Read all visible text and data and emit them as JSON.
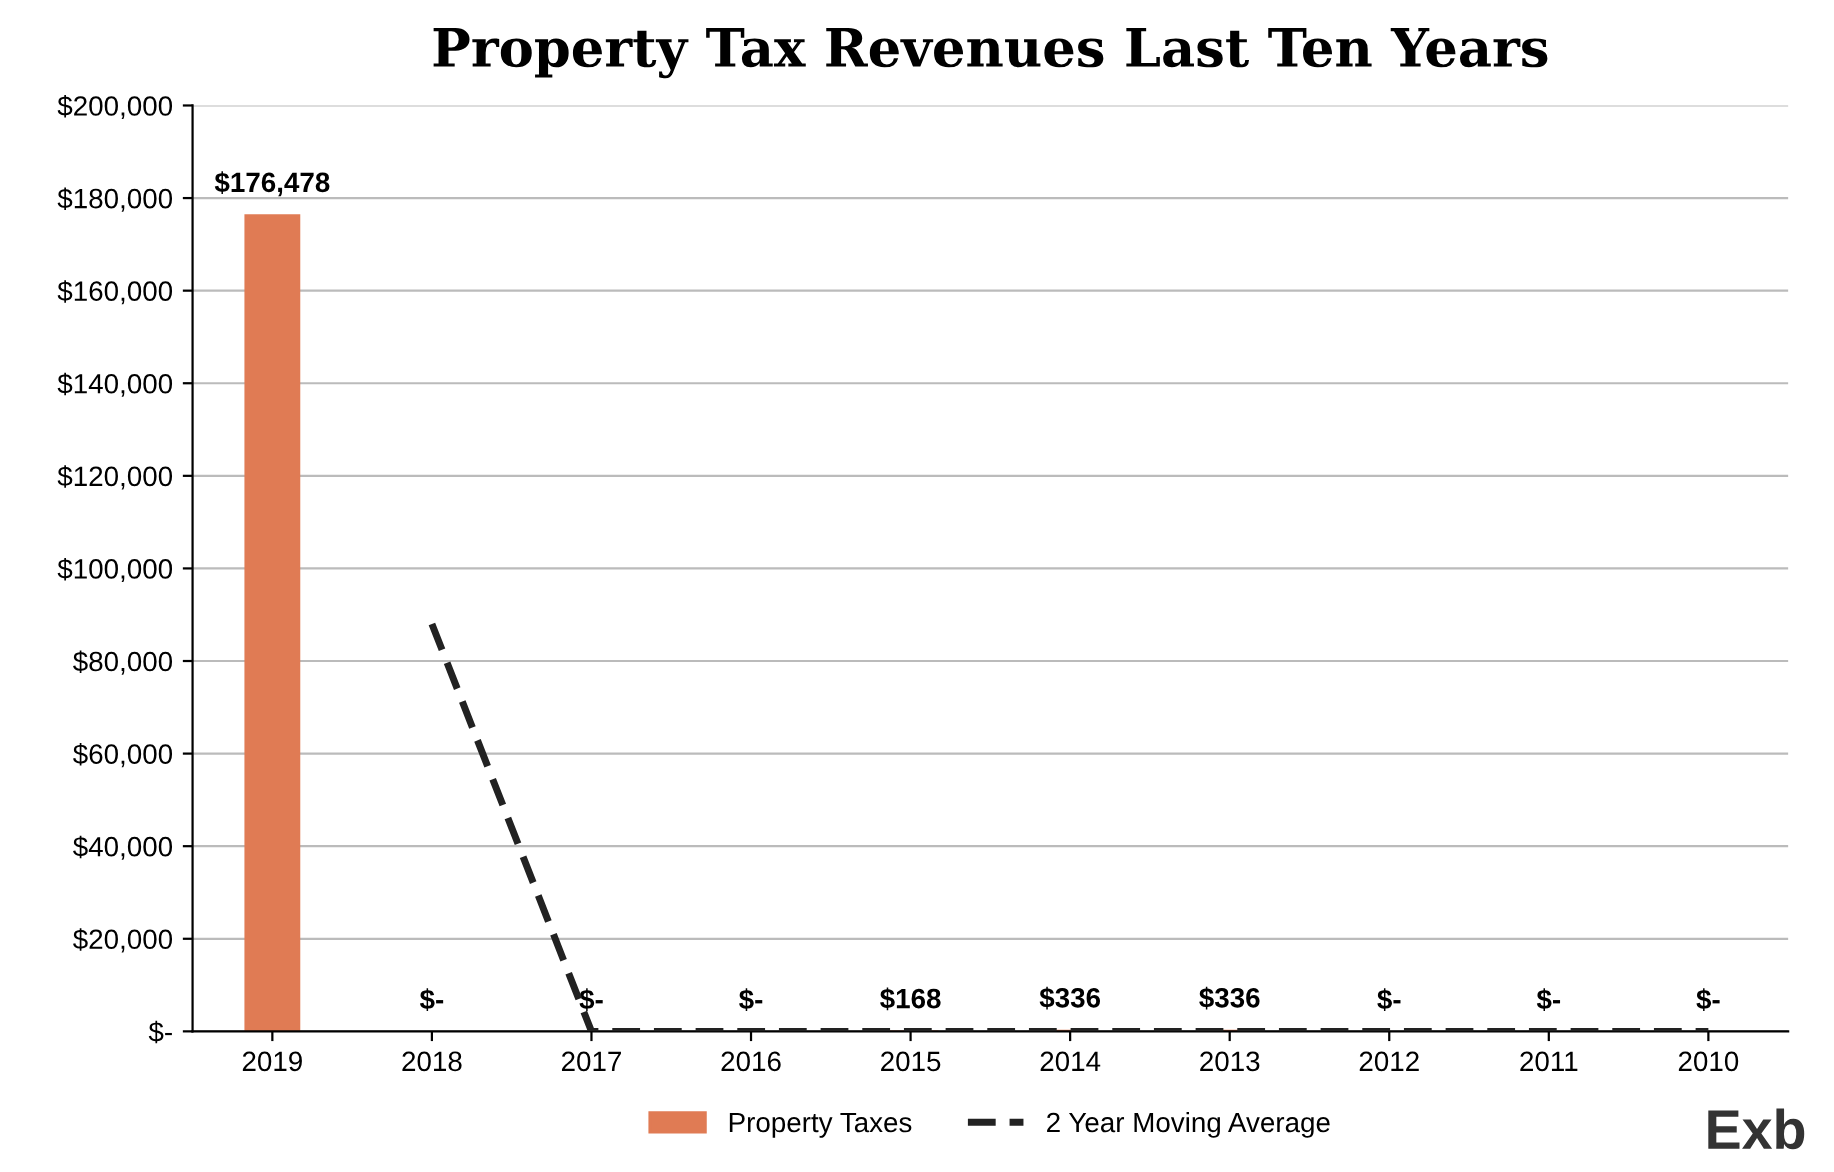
{
  "chart_data": {
    "type": "bar",
    "title": "Property Tax Revenues Last Ten Years",
    "categories": [
      "2019",
      "2018",
      "2017",
      "2016",
      "2015",
      "2014",
      "2013",
      "2012",
      "2011",
      "2010"
    ],
    "series": [
      {
        "name": "Property Taxes",
        "color": "#e07b54",
        "values": [
          176478,
          0,
          0,
          0,
          168,
          336,
          336,
          0,
          0,
          0
        ],
        "value_labels": [
          "$176,478",
          "$-",
          "$-",
          "$-",
          "$168",
          "$336",
          "$336",
          "$-",
          "$-",
          "$-"
        ]
      },
      {
        "name": "2 Year Moving Average",
        "type": "line",
        "color": "#222222",
        "line_style": "dashed",
        "marker": "none",
        "values": [
          null,
          88000,
          0,
          0,
          0,
          0,
          0,
          0,
          0,
          0
        ]
      }
    ],
    "ylim": [
      0,
      200000
    ],
    "yticks": [
      {
        "value": 0,
        "label": "$-"
      },
      {
        "value": 20000,
        "label": "$20,000"
      },
      {
        "value": 40000,
        "label": "$40,000"
      },
      {
        "value": 60000,
        "label": "$60,000"
      },
      {
        "value": 80000,
        "label": "$80,000"
      },
      {
        "value": 100000,
        "label": "$100,000"
      },
      {
        "value": 120000,
        "label": "$120,000"
      },
      {
        "value": 140000,
        "label": "$140,000"
      },
      {
        "value": 160000,
        "label": "$160,000"
      },
      {
        "value": 180000,
        "label": "$180,000"
      },
      {
        "value": 200000,
        "label": "$200,000"
      }
    ],
    "grid": "y",
    "legend": "bottom",
    "annotations": [
      "Exb"
    ]
  }
}
